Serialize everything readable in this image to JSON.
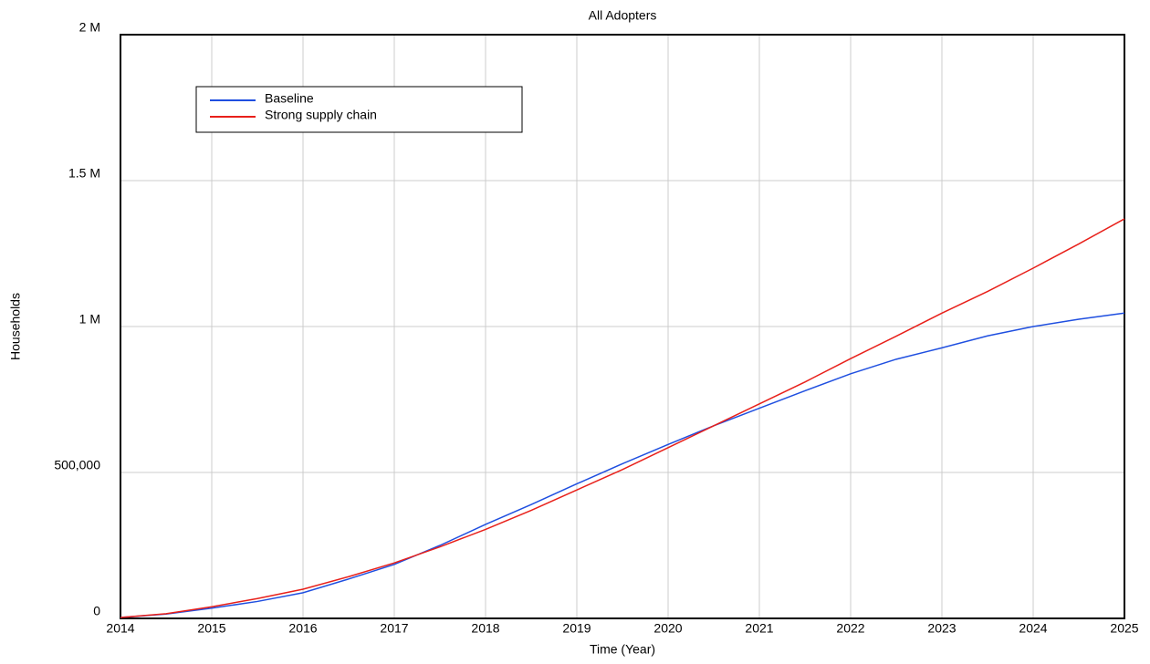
{
  "chart_data": {
    "type": "line",
    "title": "All Adopters",
    "x_label": "Time (Year)",
    "y_label": "Households",
    "x": [
      2014,
      2014.5,
      2015,
      2015.5,
      2016,
      2016.5,
      2017,
      2017.5,
      2018,
      2018.5,
      2019,
      2019.5,
      2020,
      2020.5,
      2021,
      2021.5,
      2022,
      2022.5,
      2023,
      2023.5,
      2024,
      2024.5,
      2025
    ],
    "series": [
      {
        "name": "Baseline",
        "color": "#1f4fe0",
        "values": [
          3000,
          15000,
          35000,
          58000,
          88000,
          135000,
          185000,
          250000,
          322000,
          390000,
          461000,
          530000,
          596000,
          660000,
          720000,
          780000,
          838000,
          888000,
          927000,
          968000,
          1000000,
          1025000,
          1046000
        ]
      },
      {
        "name": "Strong supply chain",
        "color": "#e8201a",
        "values": [
          3000,
          16000,
          40000,
          68000,
          100000,
          143000,
          190000,
          245000,
          305000,
          370000,
          440000,
          510000,
          585000,
          660000,
          735000,
          810000,
          890000,
          967000,
          1046000,
          1120000,
          1200000,
          1283000,
          1369000
        ]
      }
    ],
    "xlim": [
      2014,
      2025
    ],
    "xticks": [
      2014,
      2015,
      2016,
      2017,
      2018,
      2019,
      2020,
      2021,
      2022,
      2023,
      2024,
      2025
    ],
    "ylim": [
      0,
      2000000
    ],
    "yticks": [
      0,
      {
        "value": 500000,
        "label": "500,000"
      },
      {
        "value": 1000000,
        "label": "1 M"
      },
      {
        "value": 1500000,
        "label": "1.5 M"
      },
      {
        "value": 2000000,
        "label": "2 M"
      }
    ],
    "grid": true,
    "legend": "upper left"
  }
}
